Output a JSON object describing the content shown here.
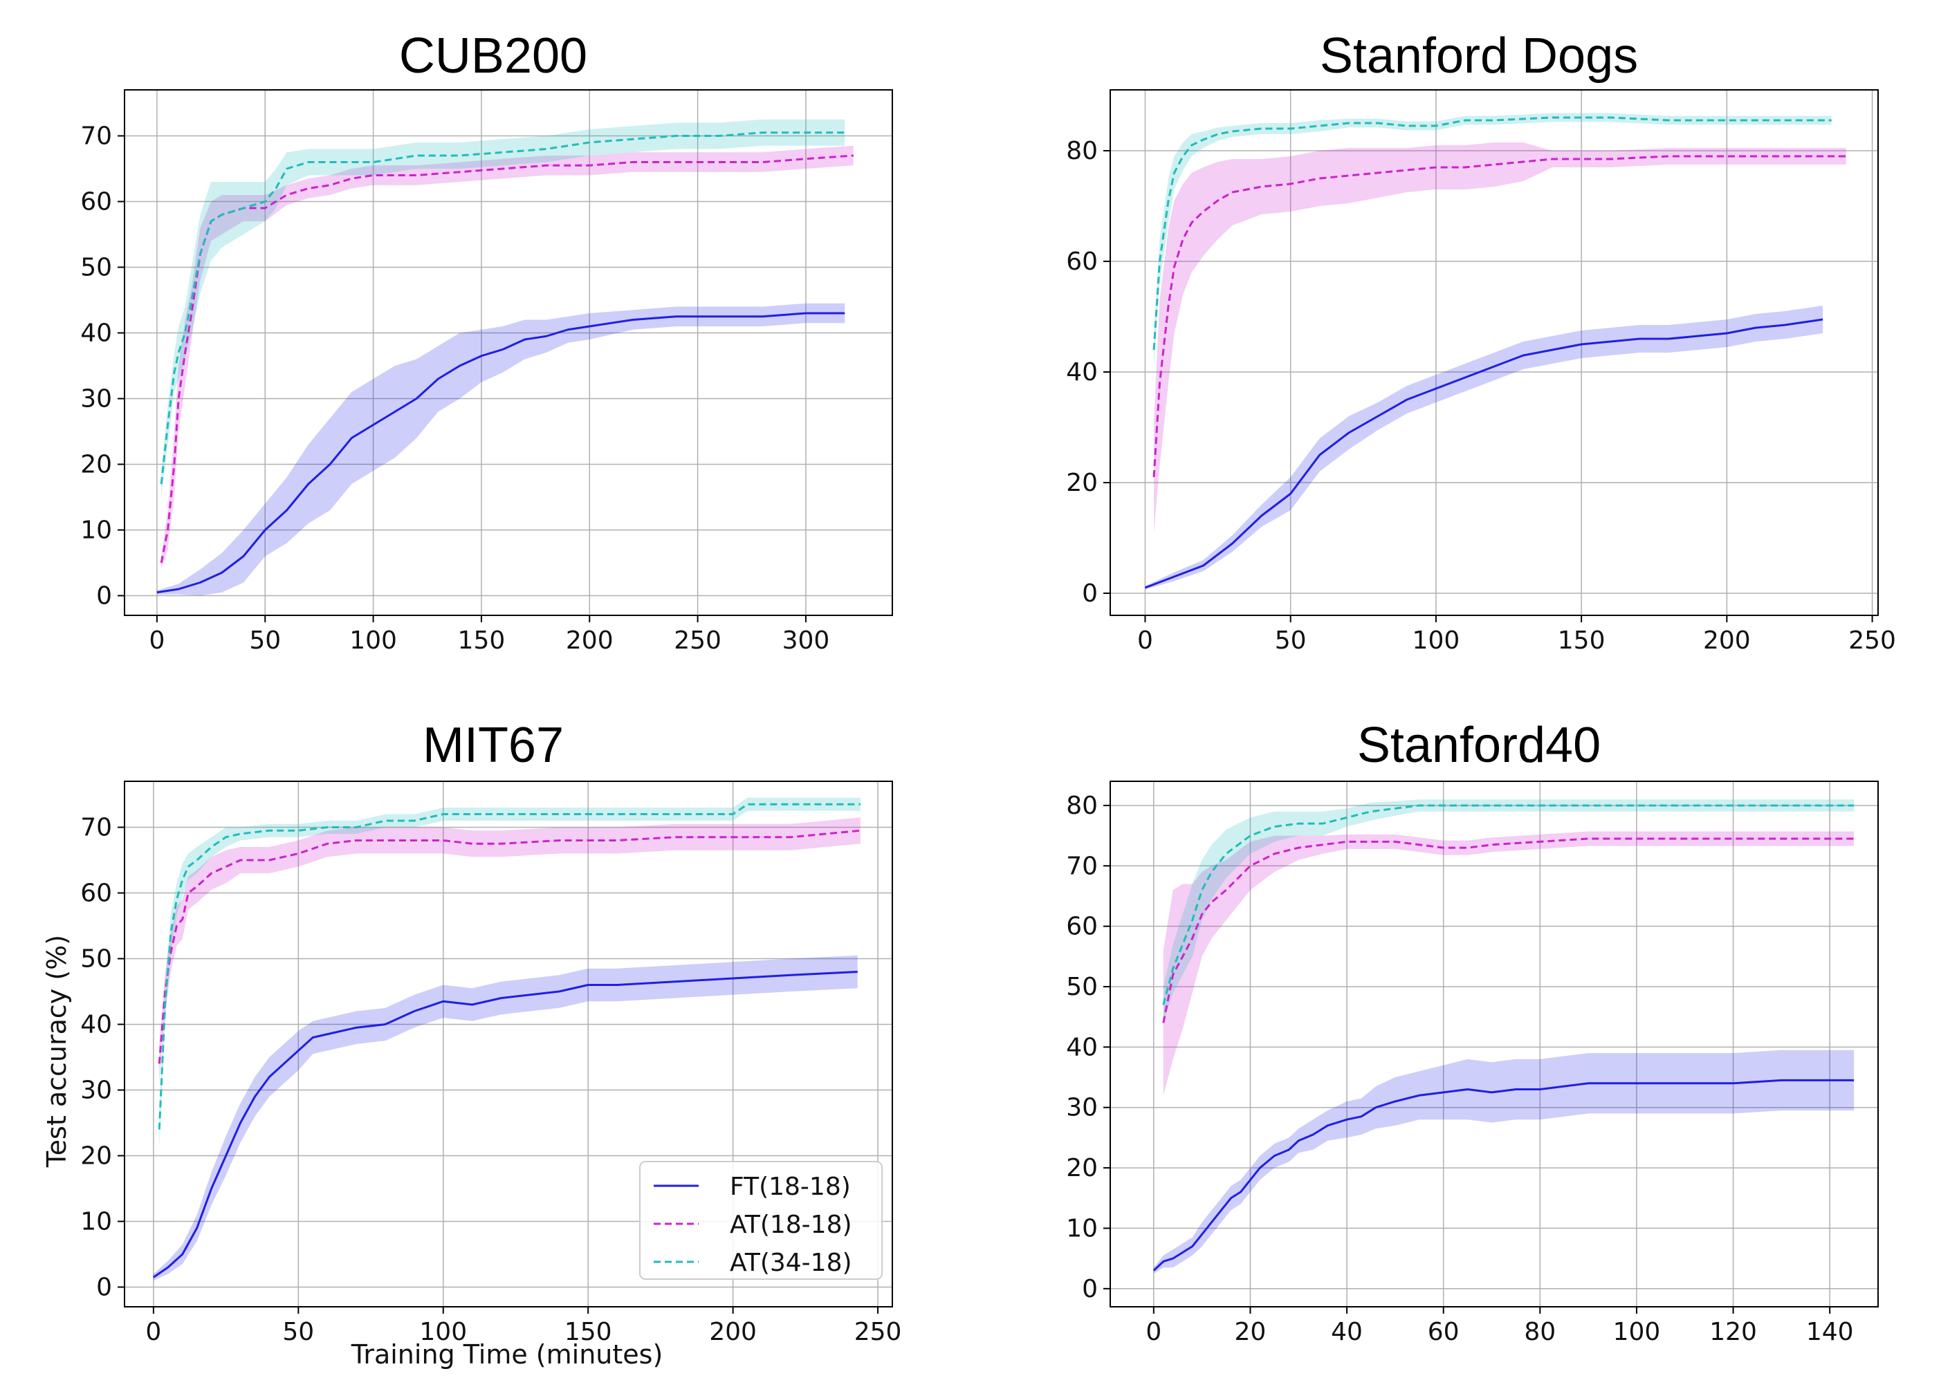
{
  "colors": {
    "FT": "#1f1fe6",
    "AT18": "#cc22cc",
    "AT34": "#22bbbb"
  },
  "legend": {
    "placement": "lower-right",
    "entries": [
      {
        "label": "FT(18-18)",
        "style": "solid",
        "color": "#1f1fe6"
      },
      {
        "label": "AT(18-18)",
        "style": "dashed",
        "color": "#cc22cc"
      },
      {
        "label": "AT(34-18)",
        "style": "dashed",
        "color": "#22bbbb"
      }
    ]
  },
  "chart_data": [
    {
      "type": "line",
      "title": "CUB200",
      "xlabel": "",
      "ylabel": "",
      "grid": true,
      "xlim": [
        -15,
        340
      ],
      "ylim": [
        -3,
        77
      ],
      "xticks": [
        0,
        50,
        100,
        150,
        200,
        250,
        300
      ],
      "yticks": [
        0,
        10,
        20,
        30,
        40,
        50,
        60,
        70
      ],
      "series": [
        {
          "name": "FT(18-18)",
          "key": "FT",
          "x": [
            0,
            10,
            20,
            30,
            40,
            50,
            60,
            70,
            80,
            90,
            100,
            110,
            120,
            130,
            140,
            150,
            160,
            170,
            180,
            190,
            200,
            220,
            240,
            260,
            280,
            300,
            318
          ],
          "y": [
            0.5,
            1,
            2,
            3.5,
            6,
            10,
            13,
            17,
            20,
            24,
            26,
            28,
            30,
            33,
            35,
            36.5,
            37.5,
            39,
            39.5,
            40.5,
            41,
            42,
            42.5,
            42.5,
            42.5,
            43,
            43
          ],
          "band": [
            0.3,
            0.8,
            2,
            3,
            4,
            4,
            5,
            6,
            7,
            7,
            7,
            7,
            6,
            5,
            5,
            4,
            3.5,
            3,
            2.5,
            2,
            2,
            1.5,
            1.5,
            1.5,
            1.5,
            1.5,
            1.5
          ]
        },
        {
          "name": "AT(18-18)",
          "key": "AT18",
          "x": [
            2,
            5,
            8,
            10,
            13,
            16,
            20,
            25,
            30,
            40,
            50,
            60,
            70,
            80,
            90,
            100,
            120,
            140,
            160,
            180,
            200,
            220,
            240,
            260,
            280,
            300,
            322
          ],
          "y": [
            5,
            10,
            20,
            30,
            37,
            43,
            52,
            57,
            58,
            59,
            59,
            61,
            62,
            62.5,
            63.5,
            64,
            64,
            64.5,
            65,
            65.5,
            65.5,
            66,
            66,
            66,
            66,
            66.5,
            67
          ],
          "band": [
            1,
            3,
            5,
            5,
            5,
            4,
            4,
            3,
            3,
            2,
            2,
            1.5,
            1.5,
            1.5,
            1.5,
            1.5,
            1.5,
            1.5,
            1.5,
            1.5,
            1.5,
            1.5,
            1.5,
            1.5,
            1.5,
            1.5,
            1.5
          ]
        },
        {
          "name": "AT(34-18)",
          "key": "AT34",
          "x": [
            2,
            5,
            8,
            10,
            13,
            16,
            20,
            25,
            30,
            40,
            50,
            55,
            60,
            70,
            80,
            90,
            100,
            120,
            140,
            160,
            180,
            200,
            220,
            240,
            260,
            280,
            300,
            318
          ],
          "y": [
            17,
            26,
            34,
            37,
            40,
            45,
            52,
            57,
            58,
            59,
            60,
            62,
            65,
            66,
            66,
            66,
            66,
            67,
            67,
            67.5,
            68,
            69,
            69.5,
            70,
            70,
            70.5,
            70.5,
            70.5
          ],
          "band": [
            2,
            3,
            3,
            4,
            4,
            5,
            6,
            6,
            5,
            4,
            3,
            3,
            2.5,
            2,
            2,
            2,
            2,
            2,
            2,
            2,
            2,
            2,
            2,
            2,
            2,
            2,
            2,
            2
          ]
        }
      ]
    },
    {
      "type": "line",
      "title": "Stanford Dogs",
      "xlabel": "",
      "ylabel": "",
      "grid": true,
      "xlim": [
        -12,
        252
      ],
      "ylim": [
        -4,
        91
      ],
      "xticks": [
        0,
        50,
        100,
        150,
        200,
        250
      ],
      "yticks": [
        0,
        20,
        40,
        60,
        80
      ],
      "series": [
        {
          "name": "FT(18-18)",
          "key": "FT",
          "x": [
            0,
            10,
            20,
            30,
            40,
            50,
            60,
            70,
            80,
            90,
            100,
            110,
            120,
            130,
            140,
            150,
            160,
            170,
            180,
            190,
            200,
            210,
            220,
            233
          ],
          "y": [
            1,
            3,
            5,
            9,
            14,
            18,
            25,
            29,
            32,
            35,
            37,
            39,
            41,
            43,
            44,
            45,
            45.5,
            46,
            46,
            46.5,
            47,
            48,
            48.5,
            49.5
          ],
          "band": [
            0.3,
            0.8,
            1,
            1.5,
            2,
            3,
            3,
            3,
            2.5,
            2.5,
            2.5,
            2.5,
            2.5,
            2.5,
            2.5,
            2.5,
            2.5,
            2.5,
            2.5,
            2.5,
            2.5,
            2.5,
            2.5,
            2.5
          ]
        },
        {
          "name": "AT(18-18)",
          "key": "AT18",
          "x": [
            3,
            5,
            8,
            10,
            13,
            16,
            20,
            25,
            30,
            40,
            50,
            60,
            70,
            80,
            90,
            100,
            110,
            120,
            130,
            140,
            160,
            180,
            200,
            220,
            241
          ],
          "y": [
            21,
            38,
            52,
            59,
            64,
            67,
            69,
            71,
            72.5,
            73.5,
            74,
            75,
            75.5,
            76,
            76.5,
            77,
            77,
            77.5,
            78,
            78.5,
            78.5,
            79,
            79,
            79,
            79
          ],
          "band": [
            10,
            15,
            14,
            12,
            10,
            9,
            8,
            7,
            6,
            5,
            5,
            5,
            5,
            4.5,
            4,
            4,
            4,
            4,
            3.5,
            1.5,
            1.5,
            1.5,
            1.5,
            1.5,
            1.5
          ]
        },
        {
          "name": "AT(34-18)",
          "key": "AT34",
          "x": [
            3,
            5,
            8,
            10,
            13,
            16,
            20,
            25,
            30,
            40,
            50,
            60,
            70,
            80,
            90,
            100,
            110,
            120,
            140,
            160,
            180,
            200,
            220,
            236
          ],
          "y": [
            44,
            60,
            71,
            76,
            79,
            81,
            82,
            83,
            83.5,
            84,
            84,
            84.5,
            85,
            85,
            84.5,
            84.5,
            85.5,
            85.5,
            86,
            86,
            85.5,
            85.5,
            85.5,
            85.5
          ],
          "band": [
            3,
            4,
            4,
            3,
            2.5,
            2,
            1.5,
            1.2,
            1,
            1,
            1,
            1,
            0.8,
            0.8,
            0.8,
            0.8,
            0.8,
            0.8,
            0.8,
            0.8,
            0.8,
            0.8,
            0.8,
            0.8
          ]
        }
      ]
    },
    {
      "type": "line",
      "title": "MIT67",
      "xlabel": "Training Time (minutes)",
      "ylabel": "Test accuracy (%)",
      "grid": true,
      "xlim": [
        -10,
        255
      ],
      "ylim": [
        -3,
        77
      ],
      "xticks": [
        0,
        50,
        100,
        150,
        200,
        250
      ],
      "yticks": [
        0,
        10,
        20,
        30,
        40,
        50,
        60,
        70
      ],
      "series": [
        {
          "name": "FT(18-18)",
          "key": "FT",
          "x": [
            0,
            5,
            10,
            15,
            20,
            25,
            30,
            35,
            40,
            45,
            50,
            55,
            60,
            70,
            80,
            90,
            100,
            110,
            120,
            130,
            140,
            150,
            160,
            180,
            200,
            220,
            243
          ],
          "y": [
            1.5,
            3,
            5,
            9,
            15,
            20,
            25,
            29,
            32,
            34,
            36,
            38,
            38.5,
            39.5,
            40,
            42,
            43.5,
            43,
            44,
            44.5,
            45,
            46,
            46,
            46.5,
            47,
            47.5,
            48
          ],
          "band": [
            0.5,
            1,
            1.5,
            2,
            2.5,
            3,
            3,
            3,
            3,
            3,
            3,
            2.5,
            2.5,
            2.5,
            2.5,
            2.5,
            2.5,
            2.5,
            2.5,
            2.5,
            2.5,
            2.5,
            2.5,
            2.5,
            2.5,
            2.5,
            2.5
          ]
        },
        {
          "name": "AT(18-18)",
          "key": "AT18",
          "x": [
            2,
            4,
            6,
            8,
            10,
            12,
            15,
            20,
            25,
            30,
            40,
            50,
            60,
            70,
            80,
            90,
            100,
            110,
            120,
            140,
            160,
            180,
            200,
            220,
            244
          ],
          "y": [
            34,
            45,
            51,
            55,
            56,
            60,
            61,
            63,
            64,
            65,
            65,
            66,
            67.5,
            68,
            68,
            68,
            68,
            67.5,
            67.5,
            68,
            68,
            68.5,
            68.5,
            68.5,
            69.5
          ],
          "band": [
            3,
            3,
            3,
            3,
            3,
            2.5,
            2.5,
            2.5,
            2.5,
            2,
            2,
            2,
            2,
            2,
            2,
            2,
            2,
            2,
            2,
            2,
            2,
            2,
            2,
            2,
            2
          ]
        },
        {
          "name": "AT(34-18)",
          "key": "AT34",
          "x": [
            2,
            4,
            6,
            8,
            10,
            12,
            15,
            20,
            25,
            30,
            40,
            50,
            60,
            70,
            80,
            90,
            100,
            120,
            140,
            160,
            180,
            200,
            205,
            220,
            244
          ],
          "y": [
            24,
            43,
            54,
            59,
            62,
            64,
            65,
            67,
            68.5,
            69,
            69.5,
            69.5,
            70,
            70,
            71,
            71,
            72,
            72,
            72,
            72,
            72,
            72,
            73.5,
            73.5,
            73.5
          ],
          "band": [
            3,
            3,
            3,
            2.5,
            2.5,
            2,
            2,
            1.5,
            1.5,
            1,
            1,
            1,
            1,
            1,
            1,
            1,
            1,
            1,
            1,
            1,
            1,
            1,
            1,
            1,
            1
          ]
        }
      ]
    },
    {
      "type": "line",
      "title": "Stanford40",
      "xlabel": "",
      "ylabel": "",
      "grid": true,
      "xlim": [
        -9,
        150
      ],
      "ylim": [
        -3,
        84
      ],
      "xticks": [
        0,
        20,
        40,
        60,
        80,
        100,
        120,
        140
      ],
      "yticks": [
        0,
        10,
        20,
        30,
        40,
        50,
        60,
        70,
        80
      ],
      "series": [
        {
          "name": "FT(18-18)",
          "key": "FT",
          "x": [
            0,
            2,
            4,
            6,
            8,
            10,
            12,
            14,
            16,
            18,
            20,
            22,
            25,
            28,
            30,
            33,
            36,
            40,
            43,
            46,
            50,
            55,
            60,
            65,
            70,
            75,
            80,
            90,
            100,
            110,
            120,
            130,
            145
          ],
          "y": [
            3,
            4.5,
            5,
            6,
            7,
            9,
            11,
            13,
            15,
            16,
            18,
            20,
            22,
            23,
            24.5,
            25.5,
            27,
            28,
            28.5,
            30,
            31,
            32,
            32.5,
            33,
            32.5,
            33,
            33,
            34,
            34,
            34,
            34,
            34.5,
            34.5
          ],
          "band": [
            0.5,
            1,
            1.5,
            1.5,
            1.5,
            2,
            2,
            2,
            2,
            2,
            2,
            2,
            2,
            2,
            2,
            2.5,
            2.5,
            3,
            3,
            3.5,
            4,
            4,
            4.5,
            5,
            5,
            5,
            5,
            5,
            5,
            5,
            5,
            5,
            5
          ]
        },
        {
          "name": "AT(18-18)",
          "key": "AT18",
          "x": [
            2,
            4,
            6,
            8,
            10,
            12,
            15,
            20,
            25,
            30,
            35,
            40,
            45,
            50,
            55,
            60,
            65,
            70,
            80,
            90,
            100,
            110,
            120,
            130,
            145
          ],
          "y": [
            44,
            52,
            55,
            58,
            62,
            64,
            66,
            70,
            72,
            73,
            73.5,
            74,
            74,
            74,
            73.5,
            73,
            73,
            73.5,
            74,
            74.5,
            74.5,
            74.5,
            74.5,
            74.5,
            74.5
          ],
          "band": [
            12,
            14,
            12,
            9,
            7,
            6,
            5,
            4,
            3,
            2,
            1.5,
            1.2,
            1.2,
            1.2,
            1.2,
            1.2,
            1.2,
            1.2,
            1.2,
            1.2,
            1.2,
            1.2,
            1.2,
            1.2,
            1.2
          ]
        },
        {
          "name": "AT(34-18)",
          "key": "AT34",
          "x": [
            2,
            4,
            6,
            8,
            10,
            12,
            15,
            20,
            25,
            30,
            35,
            40,
            45,
            50,
            55,
            60,
            70,
            80,
            90,
            100,
            110,
            120,
            130,
            145
          ],
          "y": [
            47,
            53,
            57,
            61,
            66,
            69,
            72,
            75,
            76.5,
            77,
            77,
            78,
            79,
            79.5,
            80,
            80,
            80,
            80,
            80,
            80,
            80,
            80,
            80,
            80
          ],
          "band": [
            3,
            4,
            5,
            6,
            5,
            4.5,
            4,
            3,
            2.5,
            2,
            2,
            1.5,
            1.5,
            1.2,
            1,
            1,
            1,
            1,
            1,
            1,
            1,
            1,
            1,
            1
          ]
        }
      ]
    }
  ]
}
